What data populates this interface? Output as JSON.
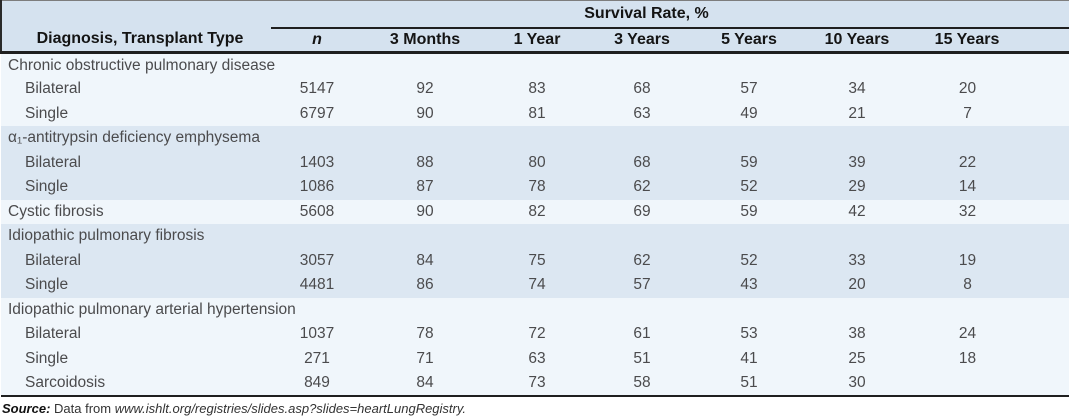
{
  "theme": {
    "header_band": "#d5e2ef",
    "band_light": "#f0f6fb",
    "band_blue": "#dce7f2",
    "rule_color": "#1f1f1f",
    "header_text": "#141414",
    "body_text": "#4b4b4d"
  },
  "table": {
    "spanner_label": "Survival Rate, %",
    "diagnosis_header": "Diagnosis, Transplant Type",
    "columns": [
      "n",
      "3 Months",
      "1 Year",
      "3 Years",
      "5 Years",
      "10 Years",
      "15 Years"
    ],
    "rows": [
      {
        "label": "Chronic obstructive pulmonary disease",
        "indent": false,
        "band": "light",
        "values": [
          "",
          "",
          "",
          "",
          "",
          "",
          ""
        ]
      },
      {
        "label": "Bilateral",
        "indent": true,
        "band": "light",
        "values": [
          "5147",
          "92",
          "83",
          "68",
          "57",
          "34",
          "20"
        ]
      },
      {
        "label": "Single",
        "indent": true,
        "band": "light",
        "values": [
          "6797",
          "90",
          "81",
          "63",
          "49",
          "21",
          "7"
        ]
      },
      {
        "label": "α₁-antitrypsin deficiency emphysema",
        "indent": false,
        "band": "blue",
        "values": [
          "",
          "",
          "",
          "",
          "",
          "",
          ""
        ]
      },
      {
        "label": "Bilateral",
        "indent": true,
        "band": "blue",
        "values": [
          "1403",
          "88",
          "80",
          "68",
          "59",
          "39",
          "22"
        ]
      },
      {
        "label": "Single",
        "indent": true,
        "band": "blue",
        "values": [
          "1086",
          "87",
          "78",
          "62",
          "52",
          "29",
          "14"
        ]
      },
      {
        "label": "Cystic fibrosis",
        "indent": false,
        "band": "light",
        "values": [
          "5608",
          "90",
          "82",
          "69",
          "59",
          "42",
          "32"
        ]
      },
      {
        "label": "Idiopathic pulmonary fibrosis",
        "indent": false,
        "band": "blue",
        "values": [
          "",
          "",
          "",
          "",
          "",
          "",
          ""
        ]
      },
      {
        "label": "Bilateral",
        "indent": true,
        "band": "blue",
        "values": [
          "3057",
          "84",
          "75",
          "62",
          "52",
          "33",
          "19"
        ]
      },
      {
        "label": "Single",
        "indent": true,
        "band": "blue",
        "values": [
          "4481",
          "86",
          "74",
          "57",
          "43",
          "20",
          "8"
        ]
      },
      {
        "label": "Idiopathic pulmonary arterial hypertension",
        "indent": false,
        "band": "light",
        "values": [
          "",
          "",
          "",
          "",
          "",
          "",
          ""
        ]
      },
      {
        "label": "Bilateral",
        "indent": true,
        "band": "light",
        "values": [
          "1037",
          "78",
          "72",
          "61",
          "53",
          "38",
          "24"
        ]
      },
      {
        "label": "Single",
        "indent": true,
        "band": "light",
        "values": [
          "271",
          "71",
          "63",
          "51",
          "41",
          "25",
          "18"
        ]
      },
      {
        "label": "Sarcoidosis",
        "indent": true,
        "band": "light",
        "values": [
          "849",
          "84",
          "73",
          "58",
          "51",
          "30",
          ""
        ]
      }
    ]
  },
  "footer": {
    "source_label": "Source:",
    "source_prefix": "Data from",
    "source_link": "www.ishlt.org/registries/slides.asp?slides=heartLungRegistry."
  }
}
